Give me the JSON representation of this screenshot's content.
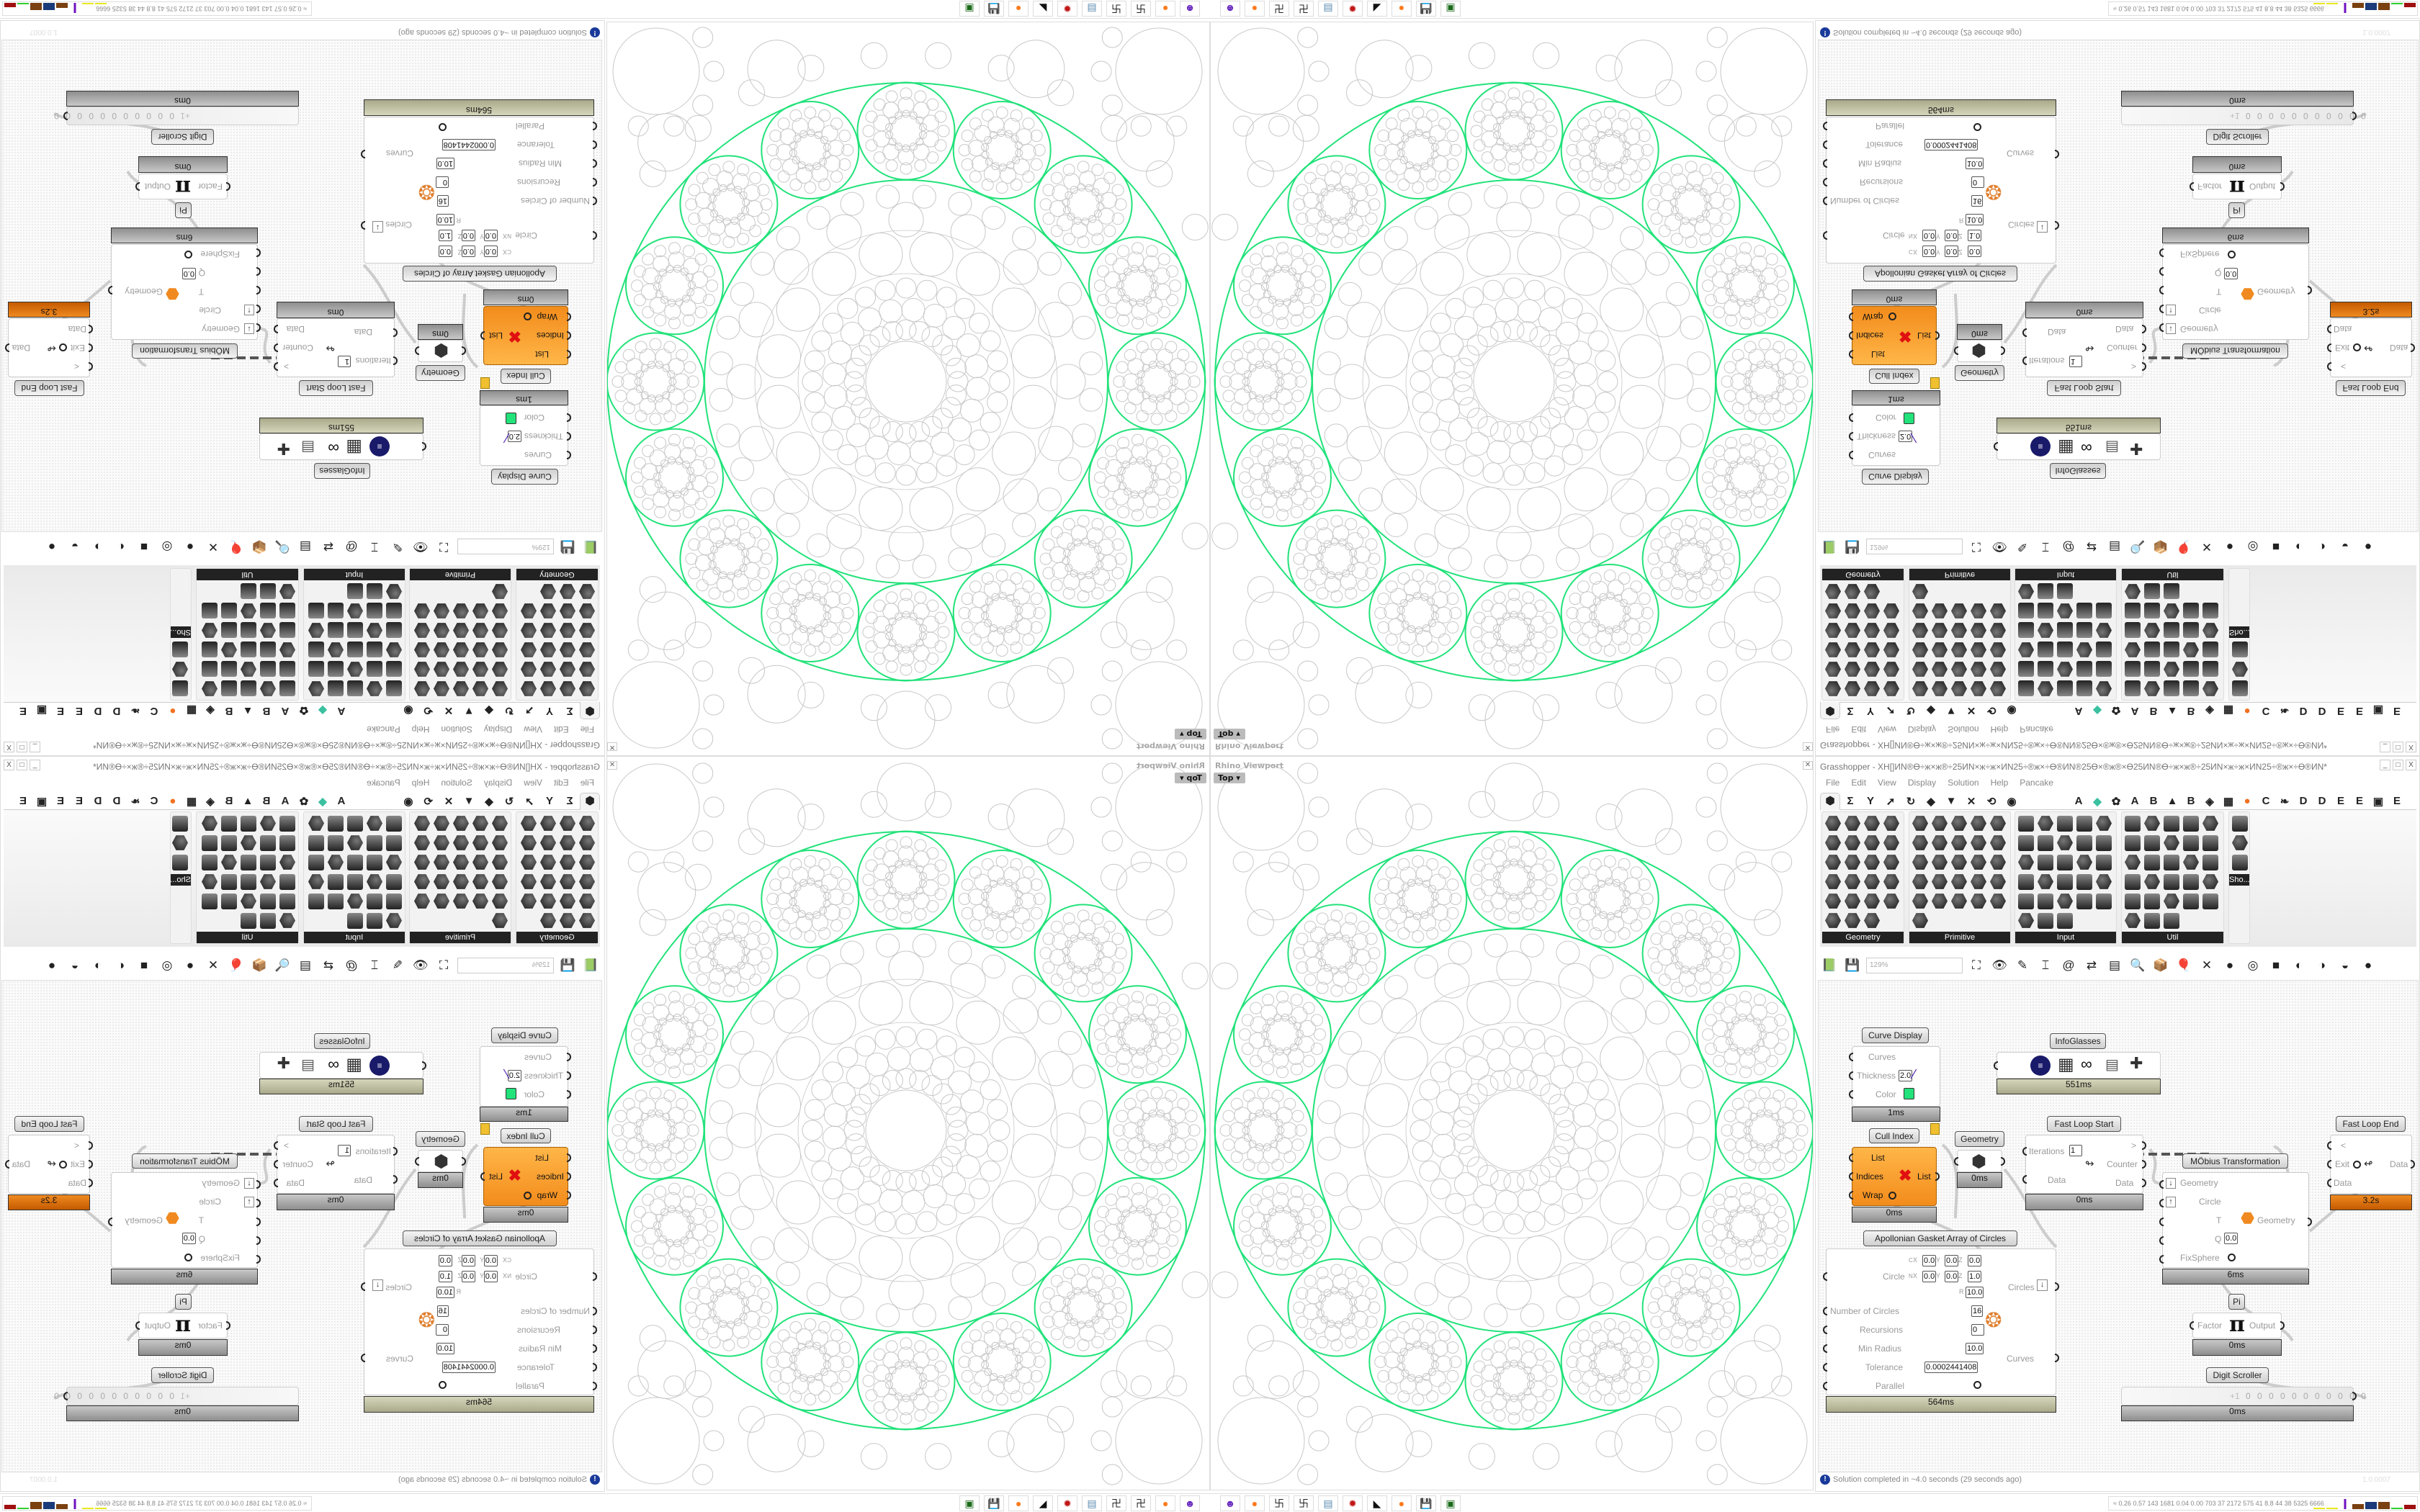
{
  "colors": {
    "curve_green": "#22e27a",
    "gasket_gray": "#c8c8c8",
    "palette_dark": "#222222",
    "cull_orange": "#f59a2a",
    "loop_end_orange": "#d9700f"
  },
  "viewport": {
    "label": "Rhino Viewport",
    "view": "Top",
    "view_arrow": "▾",
    "close": "✕"
  },
  "grasshopper": {
    "title": "Grasshopper - ХН[]ИN®Ө÷ж×ж®÷25ИN×ж÷ж×ИN25÷®ж×÷Ө®ИN®25Ө×®ж®×Ө25ИN®Ө÷ж×ж®÷25ИN×ж÷ж×ИN25÷®ж×÷Ө®ИN*",
    "window_buttons": [
      "_",
      "□",
      "X"
    ],
    "menu": [
      "File",
      "Edit",
      "View",
      "Display",
      "Solution",
      "Help",
      "Pancake"
    ],
    "tabs": [
      {
        "icon": "hexagon-icon",
        "glyph": "⬢"
      },
      {
        "icon": "sigma-icon",
        "glyph": "Σ"
      },
      {
        "icon": "plant-icon",
        "glyph": "Y"
      },
      {
        "icon": "arrow-icon",
        "glyph": "➚"
      },
      {
        "icon": "curve-icon",
        "glyph": "↻"
      },
      {
        "icon": "surface-icon",
        "glyph": "◆"
      },
      {
        "icon": "mesh-icon",
        "glyph": "▼"
      },
      {
        "icon": "intersect-icon",
        "glyph": "✕"
      },
      {
        "icon": "transform-icon",
        "glyph": "⟲"
      },
      {
        "icon": "display-icon",
        "glyph": "◉"
      },
      {
        "icon": "letter-a-icon",
        "glyph": "A"
      },
      {
        "icon": "crystal-icon",
        "glyph": "◆"
      },
      {
        "icon": "puzzle-icon",
        "glyph": "✿"
      },
      {
        "icon": "letter-a-icon",
        "glyph": "A"
      },
      {
        "icon": "letter-b-icon",
        "glyph": "B"
      },
      {
        "icon": "terrain-icon",
        "glyph": "▲"
      },
      {
        "icon": "letter-b-icon",
        "glyph": "B"
      },
      {
        "icon": "shield-icon",
        "glyph": "◈"
      },
      {
        "icon": "grid-icon",
        "glyph": "▦"
      },
      {
        "icon": "orange-circle-icon",
        "glyph": "●"
      },
      {
        "icon": "letter-c-icon",
        "glyph": "C"
      },
      {
        "icon": "rooster-icon",
        "glyph": "❧"
      },
      {
        "icon": "letter-d-icon",
        "glyph": "D"
      },
      {
        "icon": "letter-d-icon",
        "glyph": "D"
      },
      {
        "icon": "letter-e-icon",
        "glyph": "E"
      },
      {
        "icon": "letter-e-icon",
        "glyph": "E"
      },
      {
        "icon": "frame-icon",
        "glyph": "▣"
      },
      {
        "icon": "letter-e-icon",
        "glyph": "E"
      }
    ],
    "panels": [
      "Geometry",
      "Primitive",
      "Input",
      "Util",
      "Sho..."
    ],
    "panel_expand": "+",
    "zoom": "129%",
    "toolbar": [
      {
        "icon": "open-file-icon",
        "glyph": "📗"
      },
      {
        "icon": "save-icon",
        "glyph": "💾"
      },
      {
        "icon": "zoom-extents-icon",
        "glyph": "⛶"
      },
      {
        "icon": "preview-eye-icon",
        "glyph": "👁"
      },
      {
        "icon": "sketch-pen-icon",
        "glyph": "✎"
      },
      {
        "icon": "cluster-icon",
        "glyph": "⌶"
      },
      {
        "icon": "email-icon",
        "glyph": "@"
      },
      {
        "icon": "gha-icon",
        "glyph": "⇄"
      },
      {
        "icon": "canvas-icon",
        "glyph": "▤"
      },
      {
        "icon": "search-icon",
        "glyph": "🔍"
      },
      {
        "icon": "package-icon",
        "glyph": "📦"
      },
      {
        "icon": "balloon-icon",
        "glyph": "🎈"
      },
      {
        "icon": "dna-icon",
        "glyph": "✕"
      },
      {
        "icon": "shaded-icon",
        "glyph": "●"
      },
      {
        "icon": "wireframe-icon",
        "glyph": "◎"
      },
      {
        "icon": "red-box-icon",
        "glyph": "■"
      },
      {
        "icon": "teal-shape-icon",
        "glyph": "◐"
      },
      {
        "icon": "green-shape-icon",
        "glyph": "◑"
      },
      {
        "icon": "orange-sphere-icon",
        "glyph": "◒"
      },
      {
        "icon": "blue-sphere-icon",
        "glyph": "●"
      }
    ],
    "components": {
      "curve_display": {
        "title": "Curve Display",
        "inputs": [
          "Curves",
          "Thickness",
          "Color"
        ],
        "thickness": "2.0",
        "color": "#22e27a",
        "time": "1ms"
      },
      "infoglasses": {
        "title": "InfoGlasses",
        "time": "551ms"
      },
      "cull_index": {
        "title": "Cull Index",
        "inputs": [
          "List",
          "Indices",
          "Wrap"
        ],
        "output": "List",
        "time": "0ms"
      },
      "geometry": {
        "title": "Geometry",
        "time": "0ms"
      },
      "fast_loop_start": {
        "title": "Fast Loop Start",
        "iterations_label": "Iterations",
        "iterations": "1",
        "gt": ">",
        "counter": "Counter",
        "data_in": "Data",
        "data_out": "Data",
        "time": "0ms"
      },
      "fast_loop_end": {
        "title": "Fast Loop End",
        "lt": "<",
        "exit": "Exit",
        "data_out": "Data",
        "data_in": "Data",
        "time": "3.2s"
      },
      "mobius": {
        "title": "MÖbius Transformation",
        "inputs": [
          "Geometry",
          "Circle",
          "T",
          "Q",
          "FixSphere"
        ],
        "q": "0.0",
        "output": "Geometry",
        "time": "6ms"
      },
      "apollonian": {
        "title": "Apollonian Gasket Array of Circles",
        "c_label": "C",
        "n_label": "N",
        "cx": "0.0",
        "cy": "0.0",
        "cz": "0.0",
        "nx": "0.0",
        "ny": "0.0",
        "nz": "1.0",
        "r": "10.0",
        "inputs": [
          "Circle",
          "Number of Circles",
          "Recursions",
          "Min Radius",
          "Tolerance",
          "Parallel"
        ],
        "number_of_circles": "16",
        "recursions": "0",
        "min_radius": "10.0",
        "tolerance": "0.0002441408",
        "outputs": [
          "Circles",
          "Curves"
        ],
        "time": "564ms"
      },
      "pi": {
        "title": "Pi",
        "input": "Factor",
        "output": "Output",
        "glyph": "π",
        "time": "0ms"
      },
      "digit_scroller": {
        "title": "Digit Scroller",
        "sign": "+1",
        "digits": "0 0 0 0 0 0 0 0 0 0 0",
        "time": "0ms"
      }
    },
    "status": "Solution completed in ~4.0 seconds (29 seconds ago)",
    "version": "1.0.0007"
  },
  "taskbar": {
    "apps": [
      {
        "icon": "pidgin-icon",
        "glyph": "☻",
        "color": "#6a2ac0"
      },
      {
        "icon": "firefox-icon",
        "glyph": "●",
        "color": "#ff7a1a"
      },
      {
        "icon": "terminal-icon",
        "glyph": "卐",
        "color": "#222"
      },
      {
        "icon": "terminal-icon",
        "glyph": "卐",
        "color": "#222"
      },
      {
        "icon": "notepad-icon",
        "glyph": "▤",
        "color": "#5a8ab0"
      },
      {
        "icon": "settings-icon",
        "glyph": "✹",
        "color": "#c01818"
      },
      {
        "icon": "rhino-icon",
        "glyph": "◣",
        "color": "#111"
      },
      {
        "icon": "firefox-icon",
        "glyph": "●",
        "color": "#ff7a1a"
      },
      {
        "icon": "floppy-icon",
        "glyph": "💾",
        "color": "#2a2ab0"
      },
      {
        "icon": "console-icon",
        "glyph": "▣",
        "color": "#1a6a1a"
      }
    ],
    "stats": "0.26 0.57  143  1681 0.04 0.00  703   37  2172 575   41   8.8   44   38  5325 6666",
    "expand": "≈"
  }
}
